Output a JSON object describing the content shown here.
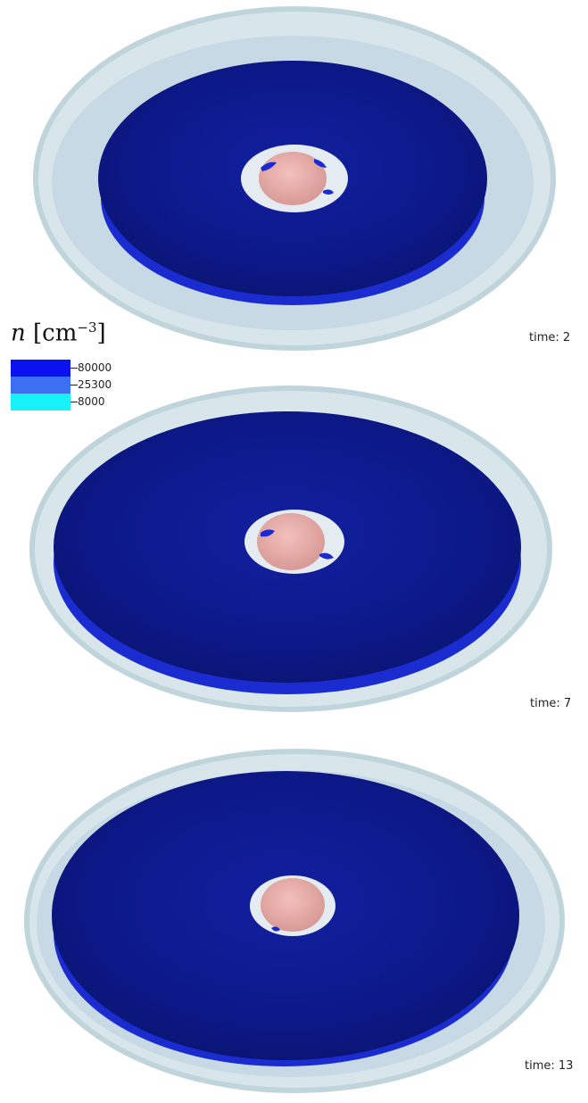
{
  "legend": {
    "title_var": "n",
    "title_unit": "cm",
    "title_exp": "−3",
    "entries": [
      {
        "value": "80000",
        "color": "#0a12f0"
      },
      {
        "value": "25300",
        "color": "#3d6ff2"
      },
      {
        "value": "8000",
        "color": "#18f0fa"
      }
    ]
  },
  "panels": [
    {
      "time_label": "time: 2"
    },
    {
      "time_label": "time: 7"
    },
    {
      "time_label": "time: 13"
    }
  ],
  "colors": {
    "outer_shell": "#cfe0e8",
    "disk": "#0d1a8c",
    "disk_rim": "#1a2bd0",
    "core": "#e8aaa6"
  }
}
